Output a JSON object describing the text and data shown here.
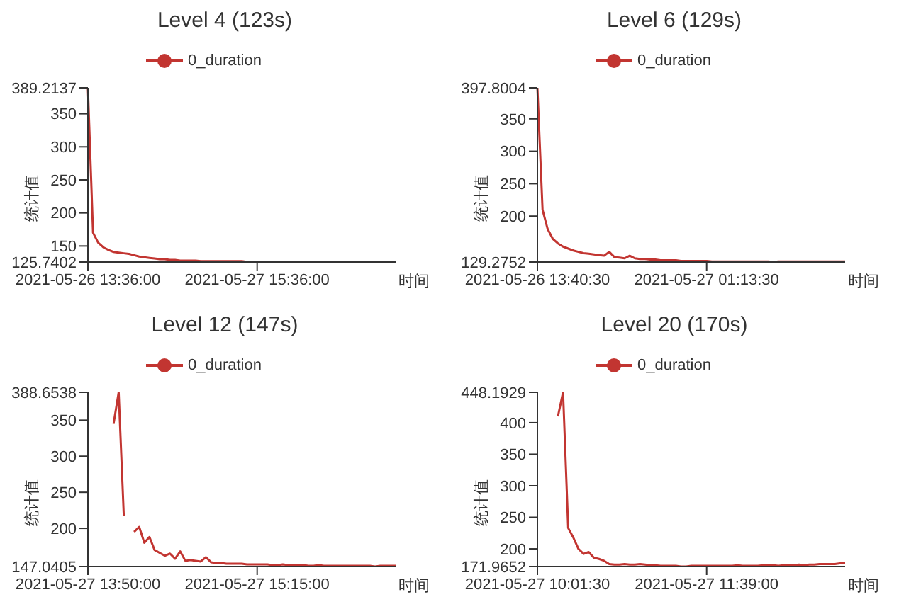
{
  "chart_data": [
    {
      "type": "line",
      "title": "Level 4 (123s)",
      "xlabel": "时间",
      "ylabel": "统计值",
      "legend": "top",
      "categories": [
        "2021-05-26 13:36:00",
        null,
        null,
        null,
        null,
        null,
        null,
        null,
        null,
        null,
        null,
        null,
        null,
        null,
        null,
        null,
        null,
        null,
        null,
        null,
        null,
        null,
        null,
        null,
        null,
        null,
        null,
        null,
        null,
        null,
        null,
        null,
        null,
        "2021-05-27 15:36:00",
        null,
        null,
        null,
        null,
        null,
        null,
        null,
        null,
        null,
        null,
        null,
        null,
        null,
        null,
        null,
        null,
        null,
        null,
        null,
        null,
        null,
        null,
        null,
        null,
        null,
        null,
        null
      ],
      "ylim": [
        125.7402,
        389.2137
      ],
      "yticks": [
        125.7402,
        150,
        200,
        250,
        300,
        350,
        389.2137
      ],
      "series": [
        {
          "name": "0_duration",
          "color": "#c23531",
          "values": [
            389.2137,
            170,
            155,
            148,
            144,
            141,
            140,
            139,
            138,
            136,
            134,
            133,
            132,
            131,
            130,
            130,
            129,
            129,
            128,
            128,
            128,
            128,
            127,
            127,
            127,
            127,
            127,
            127,
            127,
            127,
            127,
            126,
            126,
            126,
            126,
            126,
            126,
            126,
            126,
            126,
            126,
            126,
            126,
            126,
            126,
            126,
            126,
            126,
            125.7402,
            126,
            126,
            126,
            126,
            126,
            126,
            126,
            126,
            126,
            126,
            126,
            126
          ]
        }
      ]
    },
    {
      "type": "line",
      "title": "Level 6 (129s)",
      "xlabel": "时间",
      "ylabel": "统计值",
      "legend": "top",
      "categories": [
        "2021-05-26 13:40:30",
        null,
        null,
        null,
        null,
        null,
        null,
        null,
        null,
        null,
        null,
        null,
        null,
        null,
        null,
        null,
        null,
        null,
        null,
        null,
        null,
        null,
        null,
        null,
        null,
        null,
        null,
        null,
        null,
        null,
        null,
        null,
        null,
        "2021-05-27 01:13:30",
        null,
        null,
        null,
        null,
        null,
        null,
        null,
        null,
        null,
        null,
        null,
        null,
        null,
        null,
        null,
        null,
        null,
        null,
        null,
        null,
        null,
        null,
        null,
        null,
        null,
        null,
        null
      ],
      "ylim": [
        129.2752,
        397.8004
      ],
      "yticks": [
        129.2752,
        200,
        250,
        300,
        350,
        397.8004
      ],
      "series": [
        {
          "name": "0_duration",
          "color": "#c23531",
          "values": [
            397.8004,
            210,
            180,
            165,
            158,
            153,
            150,
            147,
            145,
            143,
            142,
            141,
            140,
            139,
            145,
            137,
            136,
            135,
            139,
            135,
            134,
            134,
            133,
            133,
            132,
            132,
            132,
            132,
            131,
            131,
            131,
            131,
            131,
            131,
            130,
            130,
            130,
            130,
            130,
            130,
            130,
            130,
            130,
            130,
            130,
            130,
            129.2752,
            130,
            130,
            130,
            130,
            130,
            130,
            130,
            130,
            130,
            130,
            130,
            130,
            130,
            130
          ]
        }
      ]
    },
    {
      "type": "line",
      "title": "Level 12 (147s)",
      "xlabel": "时间",
      "ylabel": "统计值",
      "legend": "top",
      "categories": [
        "2021-05-27 13:50:00",
        null,
        null,
        null,
        null,
        null,
        null,
        null,
        null,
        null,
        null,
        null,
        null,
        null,
        null,
        null,
        null,
        null,
        null,
        null,
        null,
        null,
        null,
        null,
        null,
        null,
        null,
        null,
        null,
        null,
        null,
        null,
        null,
        "2021-05-27 15:15:00",
        null,
        null,
        null,
        null,
        null,
        null,
        null,
        null,
        null,
        null,
        null,
        null,
        null,
        null,
        null,
        null,
        null,
        null,
        null,
        null,
        null,
        null,
        null,
        null,
        null,
        null,
        null
      ],
      "ylim": [
        147.0405,
        388.6538
      ],
      "yticks": [
        147.0405,
        200,
        250,
        300,
        350,
        388.6538
      ],
      "series": [
        {
          "name": "0_duration",
          "color": "#c23531",
          "values": [
            null,
            null,
            null,
            null,
            null,
            345,
            388.6538,
            217,
            null,
            195,
            202,
            180,
            188,
            170,
            166,
            162,
            165,
            158,
            168,
            155,
            156,
            155,
            154,
            160,
            153,
            152,
            152,
            151,
            151,
            151,
            151,
            150,
            150,
            150,
            150,
            150,
            149,
            149,
            150,
            149,
            149,
            149,
            149,
            148,
            148,
            149,
            148,
            148,
            148,
            148,
            148,
            148,
            148,
            148,
            148,
            148,
            147.0405,
            148,
            148,
            148,
            148
          ]
        }
      ]
    },
    {
      "type": "line",
      "title": "Level 20 (170s)",
      "xlabel": "时间",
      "ylabel": "统计值",
      "legend": "top",
      "categories": [
        "2021-05-27 10:01:30",
        null,
        null,
        null,
        null,
        null,
        null,
        null,
        null,
        null,
        null,
        null,
        null,
        null,
        null,
        null,
        null,
        null,
        null,
        null,
        null,
        null,
        null,
        null,
        null,
        null,
        null,
        null,
        null,
        null,
        null,
        null,
        null,
        "2021-05-27 11:39:00",
        null,
        null,
        null,
        null,
        null,
        null,
        null,
        null,
        null,
        null,
        null,
        null,
        null,
        null,
        null,
        null,
        null,
        null,
        null,
        null,
        null,
        null,
        null,
        null,
        null,
        null,
        null
      ],
      "ylim": [
        171.9652,
        448.1929
      ],
      "yticks": [
        171.9652,
        200,
        250,
        300,
        350,
        400,
        448.1929
      ],
      "series": [
        {
          "name": "0_duration",
          "color": "#c23531",
          "values": [
            null,
            null,
            null,
            null,
            410,
            448.1929,
            233,
            218,
            200,
            192,
            195,
            186,
            184,
            181,
            176,
            175,
            175,
            176,
            175,
            175,
            176,
            175,
            174,
            174,
            173,
            173,
            173,
            173,
            172,
            171.9652,
            173,
            173,
            173,
            173,
            173,
            173,
            173,
            173,
            173,
            174,
            173,
            173,
            173,
            173,
            174,
            174,
            174,
            173,
            174,
            174,
            174,
            175,
            174,
            175,
            175,
            176,
            176,
            176,
            176,
            177,
            177
          ]
        }
      ]
    }
  ]
}
